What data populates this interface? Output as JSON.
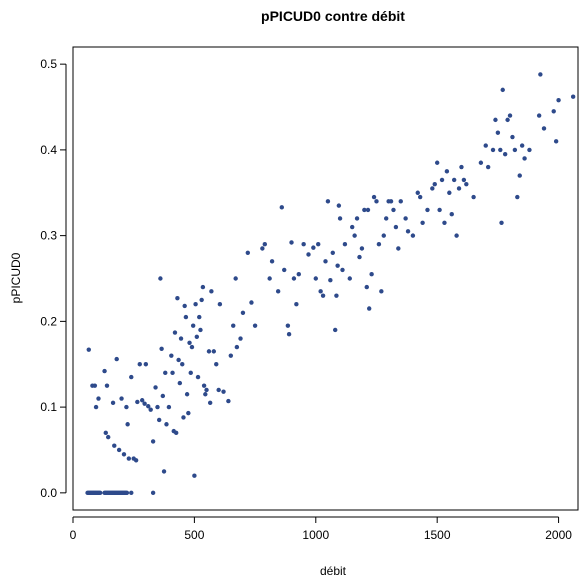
{
  "chart_data": {
    "type": "scatter",
    "title": "pPICUD0 contre débit",
    "xlabel": "débit",
    "ylabel": "pPICUD0",
    "xlim": [
      0,
      2080
    ],
    "ylim": [
      -0.02,
      0.52
    ],
    "x_ticks": [
      0,
      500,
      1000,
      1500,
      2000
    ],
    "y_ticks": [
      0.0,
      0.1,
      0.2,
      0.3,
      0.4,
      0.5
    ],
    "x_tick_labels": [
      "0",
      "500",
      "1000",
      "1500",
      "2000"
    ],
    "y_tick_labels": [
      "0.0",
      "0.1",
      "0.2",
      "0.3",
      "0.4",
      "0.5"
    ],
    "grid": false,
    "legend": "none",
    "marker_color": "#2e4a8b",
    "points": [
      [
        60,
        0
      ],
      [
        64,
        0
      ],
      [
        68,
        0
      ],
      [
        72,
        0
      ],
      [
        76,
        0
      ],
      [
        80,
        0
      ],
      [
        84,
        0
      ],
      [
        88,
        0
      ],
      [
        92,
        0
      ],
      [
        96,
        0
      ],
      [
        100,
        0
      ],
      [
        104,
        0
      ],
      [
        108,
        0
      ],
      [
        112,
        0
      ],
      [
        130,
        0
      ],
      [
        134,
        0
      ],
      [
        138,
        0
      ],
      [
        142,
        0
      ],
      [
        146,
        0
      ],
      [
        150,
        0
      ],
      [
        154,
        0
      ],
      [
        158,
        0
      ],
      [
        162,
        0
      ],
      [
        166,
        0
      ],
      [
        170,
        0
      ],
      [
        174,
        0
      ],
      [
        178,
        0
      ],
      [
        182,
        0
      ],
      [
        186,
        0
      ],
      [
        190,
        0
      ],
      [
        194,
        0
      ],
      [
        198,
        0
      ],
      [
        202,
        0
      ],
      [
        206,
        0
      ],
      [
        210,
        0
      ],
      [
        214,
        0
      ],
      [
        218,
        0
      ],
      [
        222,
        0
      ],
      [
        240,
        0
      ],
      [
        330,
        0
      ],
      [
        65,
        0.167
      ],
      [
        80,
        0.125
      ],
      [
        90,
        0.125
      ],
      [
        95,
        0.1
      ],
      [
        105,
        0.11
      ],
      [
        130,
        0.142
      ],
      [
        140,
        0.125
      ],
      [
        135,
        0.07
      ],
      [
        145,
        0.065
      ],
      [
        165,
        0.105
      ],
      [
        170,
        0.055
      ],
      [
        180,
        0.156
      ],
      [
        190,
        0.05
      ],
      [
        200,
        0.11
      ],
      [
        210,
        0.045
      ],
      [
        220,
        0.1
      ],
      [
        225,
        0.08
      ],
      [
        230,
        0.04
      ],
      [
        240,
        0.135
      ],
      [
        250,
        0.04
      ],
      [
        260,
        0.038
      ],
      [
        265,
        0.106
      ],
      [
        275,
        0.15
      ],
      [
        285,
        0.108
      ],
      [
        295,
        0.104
      ],
      [
        300,
        0.15
      ],
      [
        310,
        0.101
      ],
      [
        320,
        0.097
      ],
      [
        330,
        0.06
      ],
      [
        340,
        0.123
      ],
      [
        348,
        0.1
      ],
      [
        355,
        0.085
      ],
      [
        360,
        0.25
      ],
      [
        365,
        0.168
      ],
      [
        370,
        0.113
      ],
      [
        375,
        0.025
      ],
      [
        380,
        0.14
      ],
      [
        385,
        0.08
      ],
      [
        395,
        0.1
      ],
      [
        405,
        0.16
      ],
      [
        410,
        0.14
      ],
      [
        415,
        0.072
      ],
      [
        420,
        0.187
      ],
      [
        425,
        0.07
      ],
      [
        430,
        0.227
      ],
      [
        435,
        0.155
      ],
      [
        440,
        0.128
      ],
      [
        445,
        0.18
      ],
      [
        450,
        0.15
      ],
      [
        455,
        0.088
      ],
      [
        460,
        0.218
      ],
      [
        465,
        0.205
      ],
      [
        470,
        0.115
      ],
      [
        475,
        0.093
      ],
      [
        480,
        0.175
      ],
      [
        485,
        0.14
      ],
      [
        490,
        0.17
      ],
      [
        495,
        0.195
      ],
      [
        500,
        0.02
      ],
      [
        505,
        0.22
      ],
      [
        510,
        0.182
      ],
      [
        515,
        0.135
      ],
      [
        520,
        0.205
      ],
      [
        525,
        0.19
      ],
      [
        530,
        0.225
      ],
      [
        535,
        0.24
      ],
      [
        540,
        0.125
      ],
      [
        545,
        0.115
      ],
      [
        550,
        0.12
      ],
      [
        560,
        0.165
      ],
      [
        565,
        0.105
      ],
      [
        570,
        0.235
      ],
      [
        580,
        0.165
      ],
      [
        590,
        0.15
      ],
      [
        600,
        0.12
      ],
      [
        605,
        0.22
      ],
      [
        620,
        0.118
      ],
      [
        640,
        0.107
      ],
      [
        650,
        0.16
      ],
      [
        660,
        0.195
      ],
      [
        670,
        0.25
      ],
      [
        675,
        0.17
      ],
      [
        690,
        0.18
      ],
      [
        700,
        0.21
      ],
      [
        720,
        0.28
      ],
      [
        735,
        0.222
      ],
      [
        750,
        0.195
      ],
      [
        780,
        0.285
      ],
      [
        790,
        0.29
      ],
      [
        810,
        0.25
      ],
      [
        820,
        0.27
      ],
      [
        845,
        0.235
      ],
      [
        860,
        0.333
      ],
      [
        870,
        0.26
      ],
      [
        885,
        0.195
      ],
      [
        890,
        0.185
      ],
      [
        900,
        0.292
      ],
      [
        910,
        0.25
      ],
      [
        920,
        0.22
      ],
      [
        930,
        0.255
      ],
      [
        950,
        0.29
      ],
      [
        970,
        0.278
      ],
      [
        990,
        0.286
      ],
      [
        1000,
        0.25
      ],
      [
        1010,
        0.29
      ],
      [
        1020,
        0.235
      ],
      [
        1030,
        0.23
      ],
      [
        1040,
        0.27
      ],
      [
        1050,
        0.34
      ],
      [
        1060,
        0.248
      ],
      [
        1070,
        0.28
      ],
      [
        1080,
        0.19
      ],
      [
        1085,
        0.23
      ],
      [
        1090,
        0.265
      ],
      [
        1095,
        0.335
      ],
      [
        1100,
        0.32
      ],
      [
        1110,
        0.26
      ],
      [
        1120,
        0.29
      ],
      [
        1140,
        0.25
      ],
      [
        1150,
        0.31
      ],
      [
        1160,
        0.3
      ],
      [
        1170,
        0.32
      ],
      [
        1180,
        0.275
      ],
      [
        1190,
        0.285
      ],
      [
        1200,
        0.33
      ],
      [
        1210,
        0.24
      ],
      [
        1215,
        0.33
      ],
      [
        1220,
        0.215
      ],
      [
        1230,
        0.255
      ],
      [
        1240,
        0.345
      ],
      [
        1250,
        0.34
      ],
      [
        1260,
        0.29
      ],
      [
        1270,
        0.235
      ],
      [
        1280,
        0.3
      ],
      [
        1290,
        0.32
      ],
      [
        1300,
        0.34
      ],
      [
        1310,
        0.34
      ],
      [
        1320,
        0.33
      ],
      [
        1330,
        0.31
      ],
      [
        1340,
        0.285
      ],
      [
        1350,
        0.34
      ],
      [
        1370,
        0.32
      ],
      [
        1380,
        0.305
      ],
      [
        1400,
        0.3
      ],
      [
        1420,
        0.35
      ],
      [
        1430,
        0.345
      ],
      [
        1440,
        0.315
      ],
      [
        1460,
        0.33
      ],
      [
        1480,
        0.355
      ],
      [
        1490,
        0.36
      ],
      [
        1500,
        0.385
      ],
      [
        1510,
        0.33
      ],
      [
        1520,
        0.365
      ],
      [
        1530,
        0.315
      ],
      [
        1540,
        0.375
      ],
      [
        1550,
        0.35
      ],
      [
        1560,
        0.325
      ],
      [
        1570,
        0.365
      ],
      [
        1580,
        0.3
      ],
      [
        1590,
        0.355
      ],
      [
        1600,
        0.38
      ],
      [
        1610,
        0.365
      ],
      [
        1620,
        0.36
      ],
      [
        1650,
        0.345
      ],
      [
        1680,
        0.385
      ],
      [
        1700,
        0.405
      ],
      [
        1710,
        0.38
      ],
      [
        1730,
        0.4
      ],
      [
        1740,
        0.435
      ],
      [
        1750,
        0.42
      ],
      [
        1760,
        0.4
      ],
      [
        1765,
        0.315
      ],
      [
        1770,
        0.47
      ],
      [
        1780,
        0.395
      ],
      [
        1790,
        0.435
      ],
      [
        1800,
        0.44
      ],
      [
        1810,
        0.415
      ],
      [
        1820,
        0.4
      ],
      [
        1830,
        0.345
      ],
      [
        1840,
        0.37
      ],
      [
        1850,
        0.405
      ],
      [
        1860,
        0.39
      ],
      [
        1880,
        0.4
      ],
      [
        1920,
        0.44
      ],
      [
        1925,
        0.488
      ],
      [
        1940,
        0.425
      ],
      [
        1980,
        0.445
      ],
      [
        1990,
        0.41
      ],
      [
        2000,
        0.458
      ],
      [
        2060,
        0.462
      ]
    ]
  }
}
